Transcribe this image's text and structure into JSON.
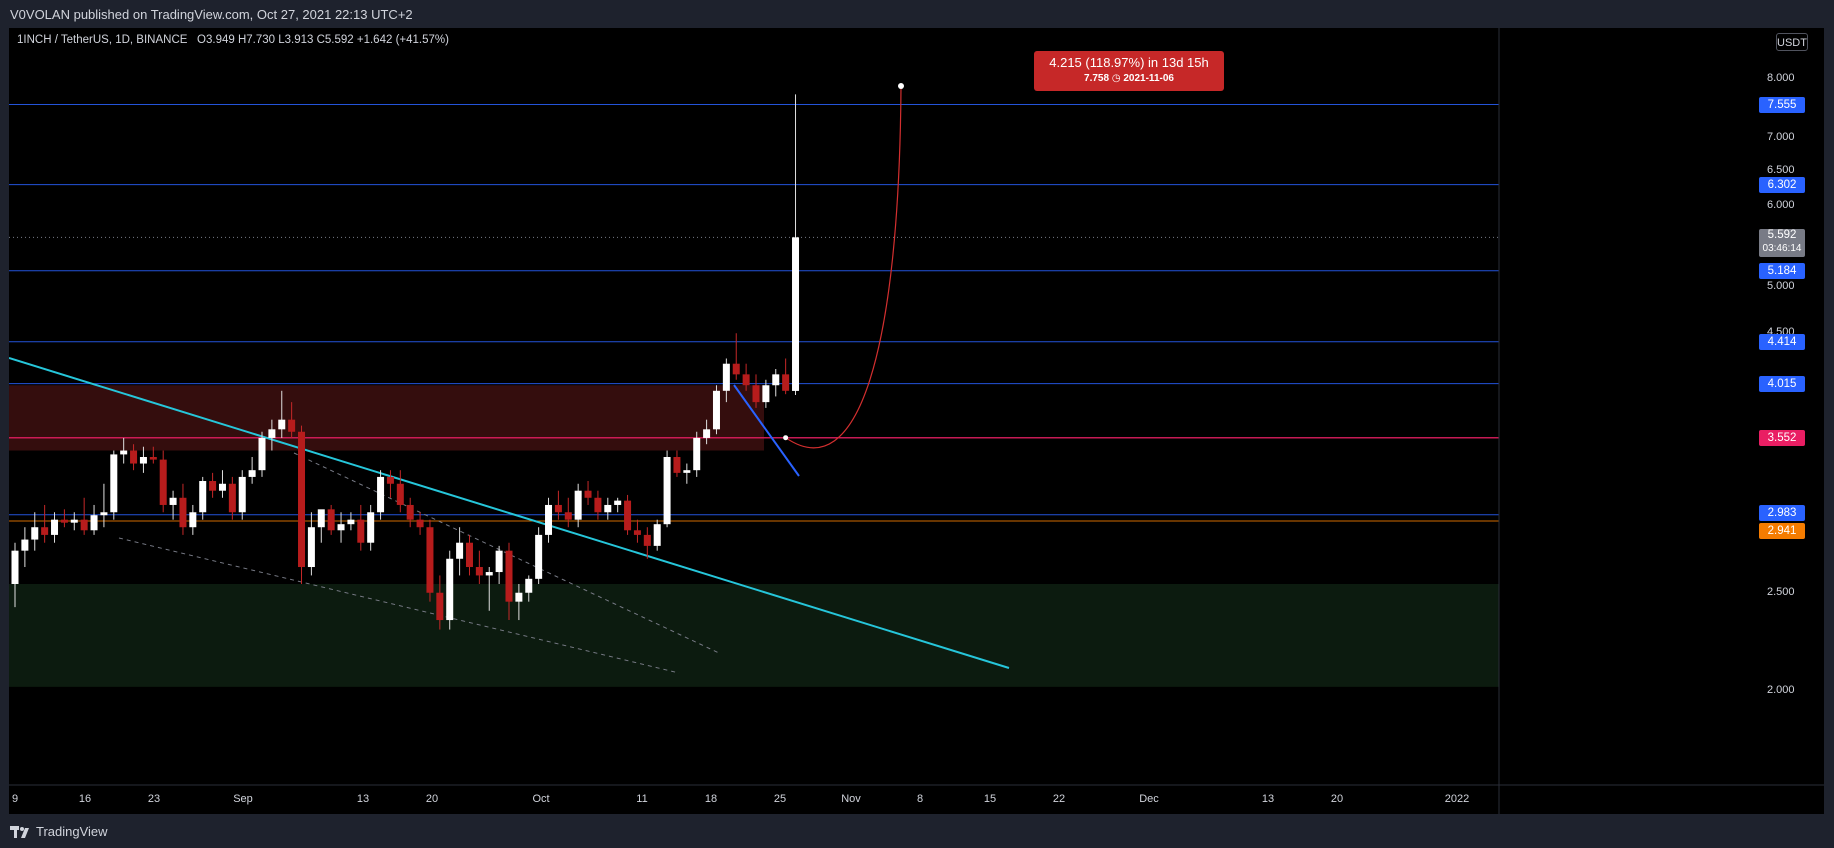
{
  "header": {
    "published_text": "V0VOLAN published on TradingView.com, Oct 27, 2021 22:13 UTC+2"
  },
  "legend": {
    "symbol": "1INCH / TetherUS, 1D, BINANCE",
    "ohlc": "O3.949  H7.730  L3.913  C5.592  +1.642 (+41.57%)"
  },
  "currency": "USDT",
  "projection": {
    "label": "4.215 (118.97%) in 13d 15h",
    "target": "7.758",
    "date": "2021-11-06",
    "clock_icon": "clock-icon"
  },
  "price_labels": [
    {
      "value": "7.555",
      "color": "#2962ff"
    },
    {
      "value": "6.302",
      "color": "#2962ff"
    },
    {
      "value": "5.592",
      "sub": "03:46:14",
      "color": "#787b86"
    },
    {
      "value": "5.184",
      "color": "#2962ff"
    },
    {
      "value": "4.414",
      "color": "#2962ff"
    },
    {
      "value": "4.015",
      "color": "#2962ff"
    },
    {
      "value": "3.552",
      "color": "#e91e63"
    },
    {
      "value": "2.983",
      "color": "#2962ff"
    },
    {
      "value": "2.941",
      "color": "#f57c00"
    }
  ],
  "y_axis_ticks": [
    "8.000",
    "7.000",
    "6.500",
    "6.000",
    "5.000",
    "4.500",
    "2.500",
    "2.000"
  ],
  "x_axis_ticks": [
    "9",
    "16",
    "23",
    "Sep",
    "13",
    "20",
    "Oct",
    "11",
    "18",
    "25",
    "Nov",
    "8",
    "15",
    "22",
    "Dec",
    "13",
    "20",
    "2022"
  ],
  "footer": {
    "brand": "TradingView"
  },
  "chart_data": {
    "type": "candlestick",
    "title": "1INCH / TetherUS, 1D, BINANCE",
    "ylim": [
      1.7,
      8.3
    ],
    "up_color": "#ffffff",
    "down_color": "#b71c1c",
    "candles": [
      [
        2.55,
        2.8,
        2.42,
        2.75
      ],
      [
        2.75,
        2.9,
        2.65,
        2.82
      ],
      [
        2.82,
        3.0,
        2.75,
        2.9
      ],
      [
        2.9,
        3.05,
        2.8,
        2.85
      ],
      [
        2.85,
        3.0,
        2.8,
        2.95
      ],
      [
        2.95,
        3.02,
        2.9,
        2.93
      ],
      [
        2.93,
        3.0,
        2.88,
        2.95
      ],
      [
        2.95,
        3.1,
        2.85,
        2.88
      ],
      [
        2.88,
        3.05,
        2.85,
        2.98
      ],
      [
        2.98,
        3.2,
        2.9,
        3.0
      ],
      [
        3.0,
        3.45,
        2.95,
        3.42
      ],
      [
        3.42,
        3.55,
        3.35,
        3.45
      ],
      [
        3.45,
        3.5,
        3.3,
        3.35
      ],
      [
        3.35,
        3.48,
        3.28,
        3.4
      ],
      [
        3.4,
        3.48,
        3.35,
        3.38
      ],
      [
        3.38,
        3.45,
        3.0,
        3.05
      ],
      [
        3.05,
        3.15,
        2.95,
        3.1
      ],
      [
        3.1,
        3.2,
        2.85,
        2.9
      ],
      [
        2.9,
        3.05,
        2.85,
        3.0
      ],
      [
        3.0,
        3.25,
        2.95,
        3.22
      ],
      [
        3.22,
        3.28,
        3.1,
        3.15
      ],
      [
        3.15,
        3.3,
        3.1,
        3.2
      ],
      [
        3.2,
        3.25,
        2.95,
        3.0
      ],
      [
        3.0,
        3.3,
        2.95,
        3.25
      ],
      [
        3.25,
        3.4,
        3.2,
        3.3
      ],
      [
        3.3,
        3.6,
        3.25,
        3.55
      ],
      [
        3.55,
        3.7,
        3.45,
        3.62
      ],
      [
        3.62,
        3.95,
        3.55,
        3.7
      ],
      [
        3.7,
        3.85,
        3.55,
        3.6
      ],
      [
        3.6,
        3.65,
        2.55,
        2.65
      ],
      [
        2.65,
        3.0,
        2.6,
        2.9
      ],
      [
        2.9,
        3.0,
        2.8,
        3.02
      ],
      [
        3.02,
        3.05,
        2.85,
        2.88
      ],
      [
        2.88,
        3.0,
        2.8,
        2.92
      ],
      [
        2.92,
        3.0,
        2.88,
        2.95
      ],
      [
        2.95,
        3.05,
        2.75,
        2.8
      ],
      [
        2.8,
        3.05,
        2.75,
        3.0
      ],
      [
        3.0,
        3.3,
        2.95,
        3.25
      ],
      [
        3.25,
        3.3,
        3.1,
        3.2
      ],
      [
        3.2,
        3.3,
        3.0,
        3.05
      ],
      [
        3.05,
        3.1,
        2.9,
        2.95
      ],
      [
        2.95,
        3.0,
        2.85,
        2.9
      ],
      [
        2.9,
        2.95,
        2.45,
        2.5
      ],
      [
        2.5,
        2.6,
        2.3,
        2.35
      ],
      [
        2.35,
        2.75,
        2.3,
        2.7
      ],
      [
        2.7,
        2.9,
        2.6,
        2.8
      ],
      [
        2.8,
        2.85,
        2.6,
        2.65
      ],
      [
        2.65,
        2.75,
        2.55,
        2.6
      ],
      [
        2.6,
        2.65,
        2.4,
        2.62
      ],
      [
        2.62,
        2.78,
        2.55,
        2.75
      ],
      [
        2.75,
        2.8,
        2.35,
        2.45
      ],
      [
        2.45,
        2.55,
        2.35,
        2.5
      ],
      [
        2.5,
        2.6,
        2.45,
        2.58
      ],
      [
        2.58,
        2.9,
        2.55,
        2.85
      ],
      [
        2.85,
        3.1,
        2.8,
        3.05
      ],
      [
        3.05,
        3.15,
        2.95,
        3.0
      ],
      [
        3.0,
        3.1,
        2.9,
        2.95
      ],
      [
        2.95,
        3.2,
        2.9,
        3.15
      ],
      [
        3.15,
        3.22,
        3.05,
        3.1
      ],
      [
        3.1,
        3.15,
        2.95,
        3.0
      ],
      [
        3.0,
        3.1,
        2.95,
        3.05
      ],
      [
        3.05,
        3.1,
        3.0,
        3.08
      ],
      [
        3.08,
        3.12,
        2.85,
        2.88
      ],
      [
        2.88,
        2.95,
        2.8,
        2.85
      ],
      [
        2.85,
        2.9,
        2.7,
        2.78
      ],
      [
        2.78,
        2.95,
        2.75,
        2.92
      ],
      [
        2.92,
        3.45,
        2.9,
        3.4
      ],
      [
        3.4,
        3.45,
        3.25,
        3.28
      ],
      [
        3.28,
        3.35,
        3.2,
        3.3
      ],
      [
        3.3,
        3.6,
        3.25,
        3.55
      ],
      [
        3.55,
        3.7,
        3.5,
        3.62
      ],
      [
        3.62,
        4.0,
        3.58,
        3.95
      ],
      [
        3.95,
        4.25,
        3.85,
        4.2
      ],
      [
        4.2,
        4.5,
        4.05,
        4.1
      ],
      [
        4.1,
        4.2,
        3.95,
        4.0
      ],
      [
        4.0,
        4.1,
        3.8,
        3.85
      ],
      [
        3.85,
        4.05,
        3.8,
        4.0
      ],
      [
        4.0,
        4.15,
        3.9,
        4.1
      ],
      [
        4.1,
        4.25,
        3.92,
        3.95
      ],
      [
        3.949,
        7.73,
        3.913,
        5.592
      ]
    ],
    "horizontal_levels": [
      7.555,
      6.302,
      5.184,
      4.414,
      4.015,
      3.552,
      2.983,
      2.941
    ],
    "zones": [
      {
        "from": 3.45,
        "to": 4.0,
        "color": "#3a0e0e"
      },
      {
        "from": 2.02,
        "to": 2.55,
        "color": "#0d1e11"
      }
    ]
  }
}
